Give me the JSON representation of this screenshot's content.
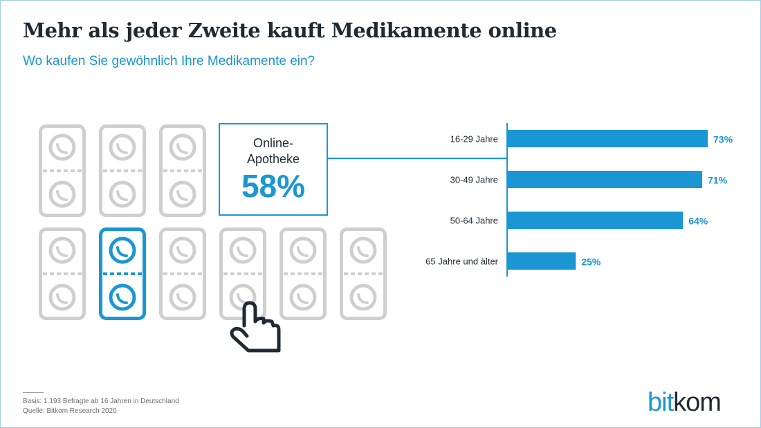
{
  "header": {
    "title": "Mehr als jeder Zweite kauft Medikamente online",
    "subtitle": "Wo kaufen Sie gewöhnlich Ihre Medikamente ein?"
  },
  "callout": {
    "label": "Online-\nApotheke",
    "value": "58%"
  },
  "chart_data": {
    "type": "bar",
    "orientation": "horizontal",
    "categories": [
      "16-29 Jahre",
      "30-49 Jahre",
      "50-64 Jahre",
      "65 Jahre und älter"
    ],
    "values": [
      73,
      71,
      64,
      25
    ],
    "value_labels": [
      "73%",
      "71%",
      "64%",
      "25%"
    ],
    "xlim": [
      0,
      100
    ],
    "unit": "%",
    "grid": false
  },
  "footer": {
    "basis": "Basis: 1.193 Befragte ab 16 Jahren in Deutschland",
    "source": "Quelle: Bitkom Research 2020"
  },
  "logo": {
    "part1": "bit",
    "part2": "kom"
  },
  "colors": {
    "accent": "#1a96d4",
    "pill_gray": "#cfcfcf",
    "text_dark": "#1f2a33"
  },
  "icons": {
    "blister": "pill-blister-icon",
    "pointer": "hand-pointer-icon"
  }
}
